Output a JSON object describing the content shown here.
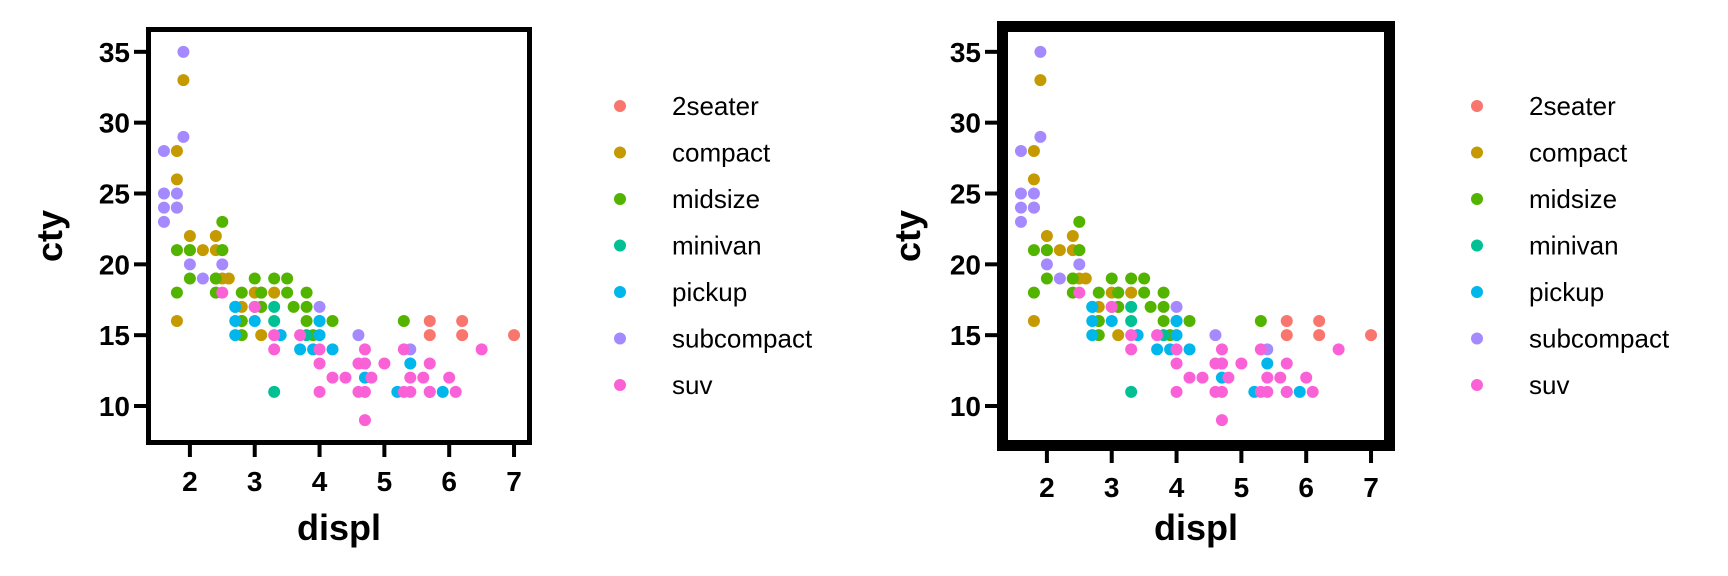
{
  "colors": {
    "2seater": "#F8766D",
    "compact": "#C49A00",
    "midsize": "#53B400",
    "minivan": "#00C094",
    "pickup": "#00B6EB",
    "subcompact": "#A58AFF",
    "suv": "#FB61D7"
  },
  "chart_data": [
    {
      "type": "scatter",
      "title": "",
      "xlabel": "displ",
      "ylabel": "cty",
      "xlim": [
        1.4,
        7.2
      ],
      "ylim": [
        7.6,
        36.4
      ],
      "xticks": [
        "2",
        "3",
        "4",
        "5",
        "6",
        "7"
      ],
      "yticks": [
        "10",
        "15",
        "20",
        "25",
        "30",
        "35"
      ],
      "legend": "right",
      "legend_entries": [
        "2seater",
        "compact",
        "midsize",
        "minivan",
        "pickup",
        "subcompact",
        "suv"
      ],
      "series": [
        {
          "name": "2seater",
          "points": [
            [
              5.7,
              16
            ],
            [
              5.7,
              15
            ],
            [
              6.2,
              16
            ],
            [
              6.2,
              15
            ],
            [
              7.0,
              15
            ]
          ]
        },
        {
          "name": "compact",
          "points": [
            [
              1.8,
              28
            ],
            [
              1.8,
              26
            ],
            [
              1.8,
              24
            ],
            [
              1.8,
              16
            ],
            [
              1.9,
              33
            ],
            [
              2.0,
              22
            ],
            [
              2.0,
              21
            ],
            [
              2.2,
              21
            ],
            [
              2.4,
              22
            ],
            [
              2.4,
              21
            ],
            [
              2.5,
              21
            ],
            [
              2.5,
              19
            ],
            [
              2.4,
              19
            ],
            [
              2.6,
              19
            ],
            [
              2.8,
              17
            ],
            [
              2.8,
              16
            ],
            [
              3.0,
              18
            ],
            [
              3.1,
              18
            ],
            [
              3.1,
              17
            ],
            [
              3.3,
              18
            ],
            [
              3.1,
              15
            ]
          ]
        },
        {
          "name": "midsize",
          "points": [
            [
              1.8,
              21
            ],
            [
              1.8,
              18
            ],
            [
              2.0,
              21
            ],
            [
              2.0,
              19
            ],
            [
              2.4,
              18
            ],
            [
              2.4,
              19
            ],
            [
              2.5,
              23
            ],
            [
              2.5,
              21
            ],
            [
              2.8,
              18
            ],
            [
              2.8,
              16
            ],
            [
              2.8,
              15
            ],
            [
              3.0,
              19
            ],
            [
              3.1,
              18
            ],
            [
              3.1,
              17
            ],
            [
              3.3,
              19
            ],
            [
              3.5,
              19
            ],
            [
              3.5,
              18
            ],
            [
              3.6,
              17
            ],
            [
              3.8,
              18
            ],
            [
              3.8,
              17
            ],
            [
              3.8,
              16
            ],
            [
              4.2,
              16
            ],
            [
              5.3,
              16
            ],
            [
              3.9,
              15
            ]
          ]
        },
        {
          "name": "minivan",
          "points": [
            [
              2.7,
              17
            ],
            [
              3.0,
              17
            ],
            [
              3.3,
              17
            ],
            [
              3.3,
              16
            ],
            [
              3.3,
              11
            ],
            [
              3.8,
              15
            ],
            [
              4.0,
              16
            ]
          ]
        },
        {
          "name": "pickup",
          "points": [
            [
              2.7,
              17
            ],
            [
              2.7,
              16
            ],
            [
              2.7,
              15
            ],
            [
              3.0,
              16
            ],
            [
              3.4,
              15
            ],
            [
              3.7,
              14
            ],
            [
              3.9,
              14
            ],
            [
              4.0,
              16
            ],
            [
              4.0,
              15
            ],
            [
              4.2,
              14
            ],
            [
              4.7,
              13
            ],
            [
              4.7,
              12
            ],
            [
              5.2,
              11
            ],
            [
              5.4,
              13
            ],
            [
              5.7,
              11
            ],
            [
              5.9,
              11
            ]
          ]
        },
        {
          "name": "subcompact",
          "points": [
            [
              1.6,
              28
            ],
            [
              1.6,
              25
            ],
            [
              1.6,
              24
            ],
            [
              1.6,
              23
            ],
            [
              1.8,
              25
            ],
            [
              1.8,
              24
            ],
            [
              1.9,
              35
            ],
            [
              1.9,
              29
            ],
            [
              2.0,
              20
            ],
            [
              2.2,
              19
            ],
            [
              2.5,
              20
            ],
            [
              4.0,
              17
            ],
            [
              4.6,
              15
            ],
            [
              5.4,
              14
            ]
          ]
        },
        {
          "name": "suv",
          "points": [
            [
              2.5,
              18
            ],
            [
              3.0,
              17
            ],
            [
              3.3,
              15
            ],
            [
              3.3,
              14
            ],
            [
              3.7,
              15
            ],
            [
              4.0,
              14
            ],
            [
              4.0,
              13
            ],
            [
              4.0,
              11
            ],
            [
              4.2,
              12
            ],
            [
              4.4,
              12
            ],
            [
              4.6,
              13
            ],
            [
              4.6,
              11
            ],
            [
              4.7,
              14
            ],
            [
              4.7,
              13
            ],
            [
              4.7,
              11
            ],
            [
              4.7,
              9
            ],
            [
              4.8,
              12
            ],
            [
              5.0,
              13
            ],
            [
              5.3,
              14
            ],
            [
              5.3,
              11
            ],
            [
              5.4,
              12
            ],
            [
              5.4,
              11
            ],
            [
              5.6,
              12
            ],
            [
              5.7,
              13
            ],
            [
              5.7,
              11
            ],
            [
              6.0,
              12
            ],
            [
              6.1,
              11
            ],
            [
              6.5,
              14
            ]
          ]
        }
      ]
    },
    {
      "type": "scatter",
      "title": "",
      "xlabel": "displ",
      "ylabel": "cty",
      "xlim": [
        1.4,
        7.2
      ],
      "ylim": [
        7.6,
        36.4
      ],
      "xticks": [
        "2",
        "3",
        "4",
        "5",
        "6",
        "7"
      ],
      "yticks": [
        "10",
        "15",
        "20",
        "25",
        "30",
        "35"
      ],
      "legend": "right",
      "legend_entries": [
        "2seater",
        "compact",
        "midsize",
        "minivan",
        "pickup",
        "subcompact",
        "suv"
      ],
      "series": [
        {
          "name": "2seater",
          "points": [
            [
              5.7,
              16
            ],
            [
              5.7,
              15
            ],
            [
              6.2,
              16
            ],
            [
              6.2,
              15
            ],
            [
              7.0,
              15
            ]
          ]
        },
        {
          "name": "compact",
          "points": [
            [
              1.8,
              28
            ],
            [
              1.8,
              26
            ],
            [
              1.8,
              24
            ],
            [
              1.8,
              16
            ],
            [
              1.9,
              33
            ],
            [
              2.0,
              22
            ],
            [
              2.0,
              21
            ],
            [
              2.2,
              21
            ],
            [
              2.4,
              22
            ],
            [
              2.4,
              21
            ],
            [
              2.5,
              21
            ],
            [
              2.5,
              19
            ],
            [
              2.4,
              19
            ],
            [
              2.6,
              19
            ],
            [
              2.8,
              17
            ],
            [
              2.8,
              16
            ],
            [
              3.0,
              18
            ],
            [
              3.1,
              18
            ],
            [
              3.1,
              17
            ],
            [
              3.3,
              18
            ],
            [
              3.1,
              15
            ]
          ]
        },
        {
          "name": "midsize",
          "points": [
            [
              1.8,
              21
            ],
            [
              1.8,
              18
            ],
            [
              2.0,
              21
            ],
            [
              2.0,
              19
            ],
            [
              2.4,
              18
            ],
            [
              2.4,
              19
            ],
            [
              2.5,
              23
            ],
            [
              2.5,
              21
            ],
            [
              2.8,
              18
            ],
            [
              2.8,
              16
            ],
            [
              2.8,
              15
            ],
            [
              3.0,
              19
            ],
            [
              3.1,
              18
            ],
            [
              3.1,
              17
            ],
            [
              3.3,
              19
            ],
            [
              3.5,
              19
            ],
            [
              3.5,
              18
            ],
            [
              3.6,
              17
            ],
            [
              3.8,
              18
            ],
            [
              3.8,
              17
            ],
            [
              3.8,
              16
            ],
            [
              4.2,
              16
            ],
            [
              5.3,
              16
            ],
            [
              3.9,
              15
            ]
          ]
        },
        {
          "name": "minivan",
          "points": [
            [
              2.7,
              17
            ],
            [
              3.0,
              17
            ],
            [
              3.3,
              17
            ],
            [
              3.3,
              16
            ],
            [
              3.3,
              11
            ],
            [
              3.8,
              15
            ],
            [
              4.0,
              16
            ]
          ]
        },
        {
          "name": "pickup",
          "points": [
            [
              2.7,
              17
            ],
            [
              2.7,
              16
            ],
            [
              2.7,
              15
            ],
            [
              3.0,
              16
            ],
            [
              3.4,
              15
            ],
            [
              3.7,
              14
            ],
            [
              3.9,
              14
            ],
            [
              4.0,
              16
            ],
            [
              4.0,
              15
            ],
            [
              4.2,
              14
            ],
            [
              4.7,
              13
            ],
            [
              4.7,
              12
            ],
            [
              5.2,
              11
            ],
            [
              5.4,
              13
            ],
            [
              5.7,
              11
            ],
            [
              5.9,
              11
            ]
          ]
        },
        {
          "name": "subcompact",
          "points": [
            [
              1.6,
              28
            ],
            [
              1.6,
              25
            ],
            [
              1.6,
              24
            ],
            [
              1.6,
              23
            ],
            [
              1.8,
              25
            ],
            [
              1.8,
              24
            ],
            [
              1.9,
              35
            ],
            [
              1.9,
              29
            ],
            [
              2.0,
              20
            ],
            [
              2.2,
              19
            ],
            [
              2.5,
              20
            ],
            [
              4.0,
              17
            ],
            [
              4.6,
              15
            ],
            [
              5.4,
              14
            ]
          ]
        },
        {
          "name": "suv",
          "points": [
            [
              2.5,
              18
            ],
            [
              3.0,
              17
            ],
            [
              3.3,
              15
            ],
            [
              3.3,
              14
            ],
            [
              3.7,
              15
            ],
            [
              4.0,
              14
            ],
            [
              4.0,
              13
            ],
            [
              4.0,
              11
            ],
            [
              4.2,
              12
            ],
            [
              4.4,
              12
            ],
            [
              4.6,
              13
            ],
            [
              4.6,
              11
            ],
            [
              4.7,
              14
            ],
            [
              4.7,
              13
            ],
            [
              4.7,
              11
            ],
            [
              4.7,
              9
            ],
            [
              4.8,
              12
            ],
            [
              5.0,
              13
            ],
            [
              5.3,
              14
            ],
            [
              5.3,
              11
            ],
            [
              5.4,
              12
            ],
            [
              5.4,
              11
            ],
            [
              5.6,
              12
            ],
            [
              5.7,
              13
            ],
            [
              5.7,
              11
            ],
            [
              6.0,
              12
            ],
            [
              6.1,
              11
            ],
            [
              6.5,
              14
            ]
          ]
        }
      ]
    }
  ]
}
